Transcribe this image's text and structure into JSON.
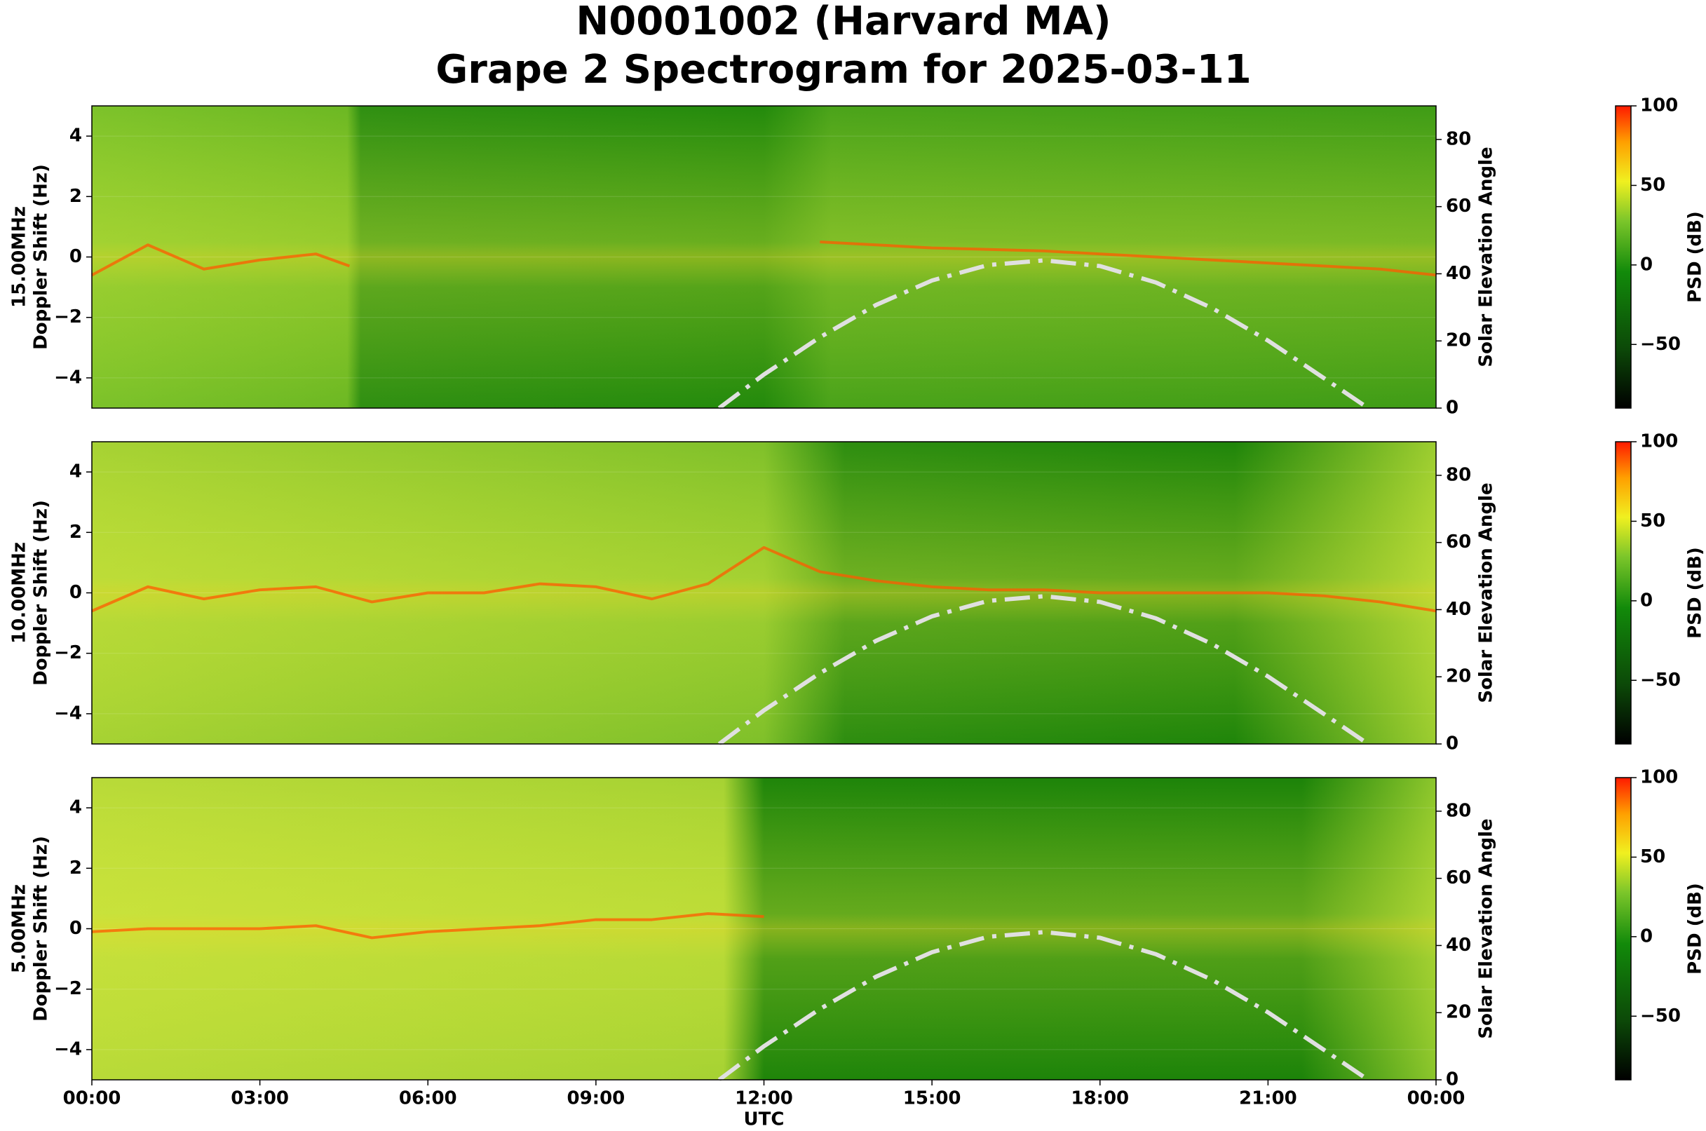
{
  "chart_data": [
    {
      "type": "spectrogram",
      "title": [
        "N0001002 (Harvard MA)",
        "Grape 2 Spectrogram for 2025-03-11"
      ],
      "ylabel": [
        "15.00MHz",
        "Doppler Shift (Hz)"
      ],
      "y2label": "Solar Elevation Angle",
      "colorbar_label": "PSD (dB)",
      "xlim": [
        0,
        24
      ],
      "ylim": [
        -5,
        5
      ],
      "y2lim": [
        0,
        90
      ],
      "clim": [
        -90,
        100
      ],
      "grid": true,
      "yticks": [
        {
          "value": -4,
          "label": "−4"
        },
        {
          "value": -2,
          "label": "−2"
        },
        0,
        2,
        4
      ],
      "y2ticks": [
        0,
        20,
        40,
        60,
        80
      ],
      "cticks": [
        {
          "value": -50,
          "label": "−50"
        },
        0,
        50,
        100
      ],
      "doppler_trace": {
        "color": "#ff5a00",
        "x": [
          0,
          1,
          2,
          3,
          4,
          4.6,
          8,
          13,
          15,
          17,
          19,
          21,
          23,
          24
        ],
        "values": [
          -0.6,
          0.4,
          -0.4,
          -0.1,
          0.1,
          -0.3,
          null,
          0.5,
          0.3,
          0.2,
          0.0,
          -0.2,
          -0.4,
          -0.6
        ]
      },
      "solar_elevation": {
        "color": "#e0e0e0",
        "axis": "y2",
        "linestyle": "dashdot",
        "x": [
          11.2,
          12,
          13,
          14,
          15,
          16,
          17,
          18,
          19,
          20,
          21,
          22,
          22.7
        ],
        "values": [
          0,
          10,
          21.1,
          30.7,
          38,
          42.6,
          44,
          42.3,
          37.4,
          29.8,
          20.1,
          8.9,
          1
        ]
      }
    },
    {
      "type": "spectrogram",
      "ylabel": [
        "10.00MHz",
        "Doppler Shift (Hz)"
      ],
      "y2label": "Solar Elevation Angle",
      "colorbar_label": "PSD (dB)",
      "xlim": [
        0,
        24
      ],
      "ylim": [
        -5,
        5
      ],
      "y2lim": [
        0,
        90
      ],
      "clim": [
        -90,
        100
      ],
      "grid": true,
      "yticks": [
        {
          "value": -4,
          "label": "−4"
        },
        {
          "value": -2,
          "label": "−2"
        },
        0,
        2,
        4
      ],
      "y2ticks": [
        0,
        20,
        40,
        60,
        80
      ],
      "cticks": [
        {
          "value": -50,
          "label": "−50"
        },
        0,
        50,
        100
      ],
      "doppler_trace": {
        "color": "#ff5a00",
        "x": [
          0,
          1,
          2,
          3,
          4,
          5,
          6,
          7,
          8,
          9,
          10,
          11,
          12,
          13,
          14,
          15,
          16,
          17,
          18,
          19,
          20,
          21,
          22,
          23,
          24
        ],
        "values": [
          -0.6,
          0.2,
          -0.2,
          0.1,
          0.2,
          -0.3,
          0,
          0,
          0.3,
          0.2,
          -0.2,
          0.3,
          1.5,
          0.7,
          0.4,
          0.2,
          0.1,
          0.1,
          0,
          0,
          0,
          0,
          -0.1,
          -0.3,
          -0.6
        ]
      },
      "solar_elevation": {
        "color": "#e0e0e0",
        "axis": "y2",
        "linestyle": "dashdot",
        "x": [
          11.2,
          12,
          13,
          14,
          15,
          16,
          17,
          18,
          19,
          20,
          21,
          22,
          22.7
        ],
        "values": [
          0,
          10,
          21.1,
          30.7,
          38,
          42.6,
          44,
          42.3,
          37.4,
          29.8,
          20.1,
          8.9,
          1
        ]
      }
    },
    {
      "type": "spectrogram",
      "ylabel": [
        "5.00MHz",
        "Doppler Shift (Hz)"
      ],
      "y2label": "Solar Elevation Angle",
      "colorbar_label": "PSD (dB)",
      "xlabel": "UTC",
      "xlim": [
        0,
        24
      ],
      "ylim": [
        -5,
        5
      ],
      "y2lim": [
        0,
        90
      ],
      "clim": [
        -90,
        100
      ],
      "grid": true,
      "xticks": [
        {
          "value": 0,
          "label": "00:00"
        },
        {
          "value": 3,
          "label": "03:00"
        },
        {
          "value": 6,
          "label": "06:00"
        },
        {
          "value": 9,
          "label": "09:00"
        },
        {
          "value": 12,
          "label": "12:00"
        },
        {
          "value": 15,
          "label": "15:00"
        },
        {
          "value": 18,
          "label": "18:00"
        },
        {
          "value": 21,
          "label": "21:00"
        },
        {
          "value": 24,
          "label": "00:00"
        }
      ],
      "yticks": [
        {
          "value": -4,
          "label": "−4"
        },
        {
          "value": -2,
          "label": "−2"
        },
        0,
        2,
        4
      ],
      "y2ticks": [
        0,
        20,
        40,
        60,
        80
      ],
      "cticks": [
        {
          "value": -50,
          "label": "−50"
        },
        0,
        50,
        100
      ],
      "doppler_trace": {
        "color": "#ff5a00",
        "x": [
          0,
          1,
          2,
          3,
          4,
          5,
          6,
          7,
          8,
          9,
          10,
          11,
          12
        ],
        "values": [
          -0.1,
          0,
          0,
          0,
          0.1,
          -0.3,
          -0.1,
          0,
          0.1,
          0.3,
          0.3,
          0.5,
          0.4
        ]
      },
      "solar_elevation": {
        "color": "#e0e0e0",
        "axis": "y2",
        "linestyle": "dashdot",
        "x": [
          11.2,
          12,
          13,
          14,
          15,
          16,
          17,
          18,
          19,
          20,
          21,
          22,
          22.7
        ],
        "values": [
          0,
          10,
          21.1,
          30.7,
          38,
          42.6,
          44,
          42.3,
          37.4,
          29.8,
          20.1,
          8.9,
          1
        ]
      }
    }
  ]
}
